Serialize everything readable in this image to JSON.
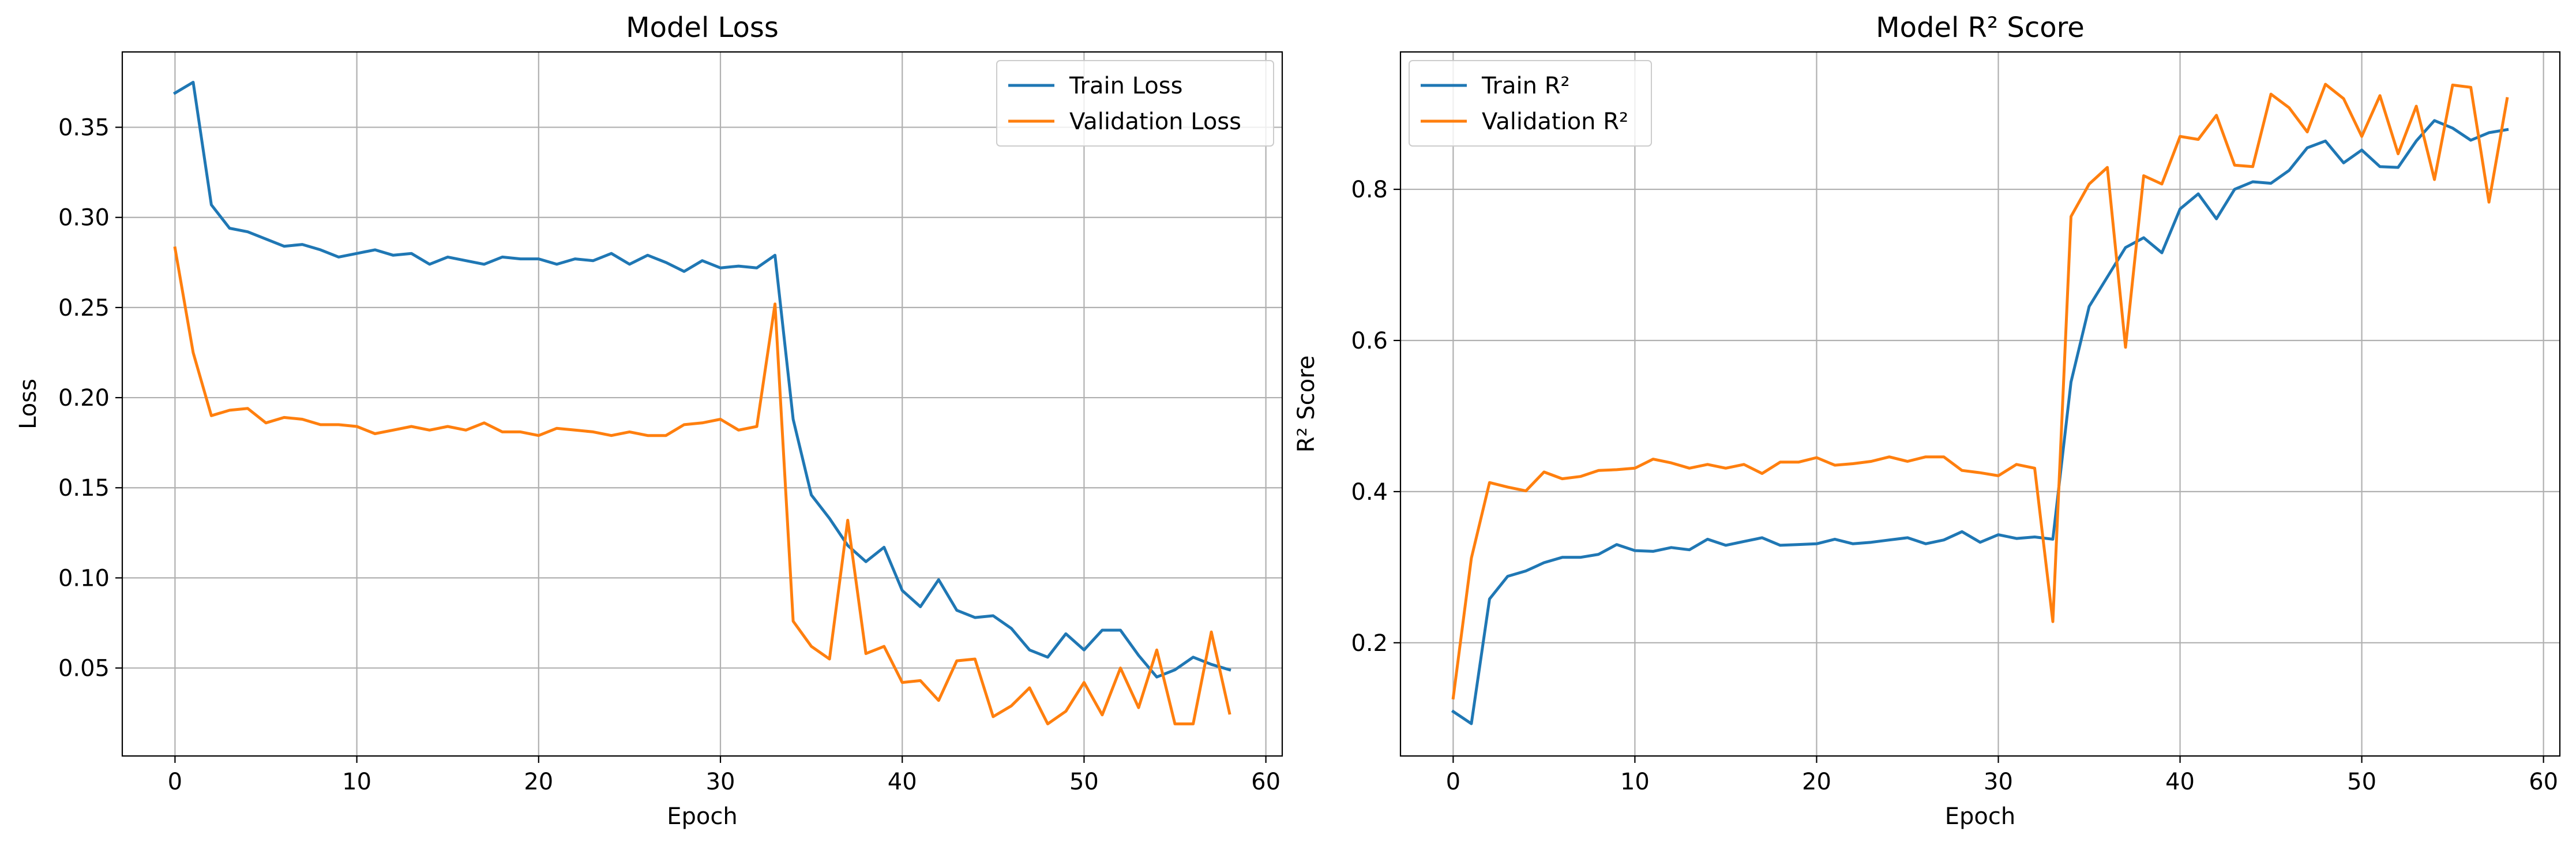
{
  "chart_data": [
    {
      "type": "line",
      "title": "Model Loss",
      "xlabel": "Epoch",
      "ylabel": "Loss",
      "xlim": [
        -2.9,
        60.9
      ],
      "ylim": [
        0.0012,
        0.3918
      ],
      "xticks": [
        0,
        10,
        20,
        30,
        40,
        50,
        60
      ],
      "yticks": [
        0.05,
        0.1,
        0.15,
        0.2,
        0.25,
        0.3,
        0.35
      ],
      "ytick_labels": [
        "0.05",
        "0.10",
        "0.15",
        "0.20",
        "0.25",
        "0.30",
        "0.35"
      ],
      "grid": true,
      "legend_position": "upper right",
      "x": [
        0,
        1,
        2,
        3,
        4,
        5,
        6,
        7,
        8,
        9,
        10,
        11,
        12,
        13,
        14,
        15,
        16,
        17,
        18,
        19,
        20,
        21,
        22,
        23,
        24,
        25,
        26,
        27,
        28,
        29,
        30,
        31,
        32,
        33,
        34,
        35,
        36,
        37,
        38,
        39,
        40,
        41,
        42,
        43,
        44,
        45,
        46,
        47,
        48,
        49,
        50,
        51,
        52,
        53,
        54,
        55,
        56,
        57,
        58
      ],
      "series": [
        {
          "name": "Train Loss",
          "color": "#1f77b4",
          "values": [
            0.369,
            0.375,
            0.307,
            0.294,
            0.292,
            0.288,
            0.284,
            0.285,
            0.282,
            0.278,
            0.28,
            0.282,
            0.279,
            0.28,
            0.274,
            0.278,
            0.276,
            0.274,
            0.278,
            0.277,
            0.277,
            0.274,
            0.277,
            0.276,
            0.28,
            0.274,
            0.279,
            0.275,
            0.27,
            0.276,
            0.272,
            0.273,
            0.272,
            0.279,
            0.188,
            0.146,
            0.133,
            0.118,
            0.109,
            0.117,
            0.093,
            0.084,
            0.099,
            0.082,
            0.078,
            0.079,
            0.072,
            0.06,
            0.056,
            0.069,
            0.06,
            0.071,
            0.071,
            0.057,
            0.045,
            0.049,
            0.056,
            0.052,
            0.049
          ]
        },
        {
          "name": "Validation Loss",
          "color": "#ff7f0e",
          "values": [
            0.283,
            0.225,
            0.19,
            0.193,
            0.194,
            0.186,
            0.189,
            0.188,
            0.185,
            0.185,
            0.184,
            0.18,
            0.182,
            0.184,
            0.182,
            0.184,
            0.182,
            0.186,
            0.181,
            0.181,
            0.179,
            0.183,
            0.182,
            0.181,
            0.179,
            0.181,
            0.179,
            0.179,
            0.185,
            0.186,
            0.188,
            0.182,
            0.184,
            0.252,
            0.076,
            0.062,
            0.055,
            0.132,
            0.058,
            0.062,
            0.042,
            0.043,
            0.032,
            0.054,
            0.055,
            0.023,
            0.029,
            0.039,
            0.019,
            0.026,
            0.042,
            0.024,
            0.05,
            0.028,
            0.06,
            0.019,
            0.019,
            0.07,
            0.025
          ]
        }
      ]
    },
    {
      "type": "line",
      "title": "Model R² Score",
      "xlabel": "Epoch",
      "ylabel": "R² Score",
      "xlim": [
        -2.9,
        60.9
      ],
      "ylim": [
        0.0502,
        0.9818
      ],
      "xticks": [
        0,
        10,
        20,
        30,
        40,
        50,
        60
      ],
      "yticks": [
        0.2,
        0.4,
        0.6,
        0.8
      ],
      "ytick_labels": [
        "0.2",
        "0.4",
        "0.6",
        "0.8"
      ],
      "grid": true,
      "legend_position": "upper left",
      "x": [
        0,
        1,
        2,
        3,
        4,
        5,
        6,
        7,
        8,
        9,
        10,
        11,
        12,
        13,
        14,
        15,
        16,
        17,
        18,
        19,
        20,
        21,
        22,
        23,
        24,
        25,
        26,
        27,
        28,
        29,
        30,
        31,
        32,
        33,
        34,
        35,
        36,
        37,
        38,
        39,
        40,
        41,
        42,
        43,
        44,
        45,
        46,
        47,
        48,
        49,
        50,
        51,
        52,
        53,
        54,
        55,
        56,
        57,
        58
      ],
      "series": [
        {
          "name": "Train R²",
          "color": "#1f77b4",
          "values": [
            0.109,
            0.093,
            0.258,
            0.288,
            0.295,
            0.306,
            0.313,
            0.313,
            0.317,
            0.33,
            0.322,
            0.321,
            0.326,
            0.323,
            0.337,
            0.329,
            0.334,
            0.339,
            0.329,
            0.33,
            0.331,
            0.337,
            0.331,
            0.333,
            0.336,
            0.339,
            0.331,
            0.336,
            0.347,
            0.333,
            0.343,
            0.338,
            0.34,
            0.337,
            0.545,
            0.645,
            0.684,
            0.723,
            0.736,
            0.716,
            0.774,
            0.794,
            0.761,
            0.8,
            0.81,
            0.808,
            0.825,
            0.855,
            0.864,
            0.835,
            0.852,
            0.83,
            0.829,
            0.864,
            0.891,
            0.881,
            0.865,
            0.875,
            0.879
          ]
        },
        {
          "name": "Validation R²",
          "color": "#ff7f0e",
          "values": [
            0.127,
            0.312,
            0.412,
            0.406,
            0.401,
            0.426,
            0.417,
            0.42,
            0.428,
            0.429,
            0.431,
            0.443,
            0.438,
            0.431,
            0.436,
            0.431,
            0.436,
            0.424,
            0.439,
            0.439,
            0.445,
            0.435,
            0.437,
            0.44,
            0.446,
            0.44,
            0.446,
            0.446,
            0.428,
            0.425,
            0.421,
            0.436,
            0.431,
            0.228,
            0.764,
            0.807,
            0.829,
            0.591,
            0.818,
            0.807,
            0.87,
            0.866,
            0.898,
            0.832,
            0.83,
            0.926,
            0.908,
            0.876,
            0.939,
            0.92,
            0.87,
            0.924,
            0.847,
            0.91,
            0.813,
            0.938,
            0.935,
            0.783,
            0.92
          ]
        }
      ]
    }
  ]
}
